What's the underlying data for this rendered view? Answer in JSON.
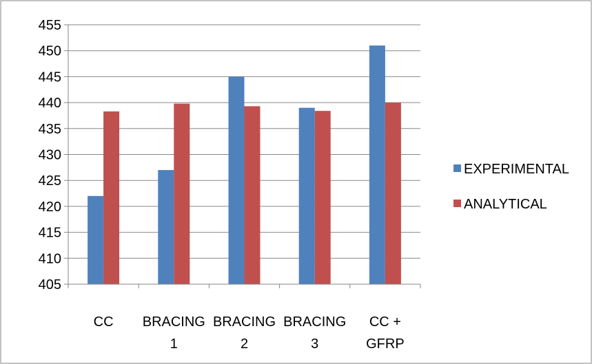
{
  "chart_data": {
    "type": "bar",
    "categories": [
      [
        "CC"
      ],
      [
        "BRACING",
        "1"
      ],
      [
        "BRACING",
        "2"
      ],
      [
        "BRACING",
        "3"
      ],
      [
        "CC +",
        "GFRP"
      ]
    ],
    "series": [
      {
        "name": "EXPERIMENTAL",
        "color": "#4F81BD",
        "values": [
          422,
          427,
          445,
          439,
          451
        ]
      },
      {
        "name": "ANALYTICAL",
        "color": "#C0504D",
        "values": [
          438.3,
          439.8,
          439.3,
          438.4,
          440
        ]
      }
    ],
    "ylim": [
      405,
      455
    ],
    "ytick_step": 5,
    "grid": true,
    "legend_position": "right"
  }
}
